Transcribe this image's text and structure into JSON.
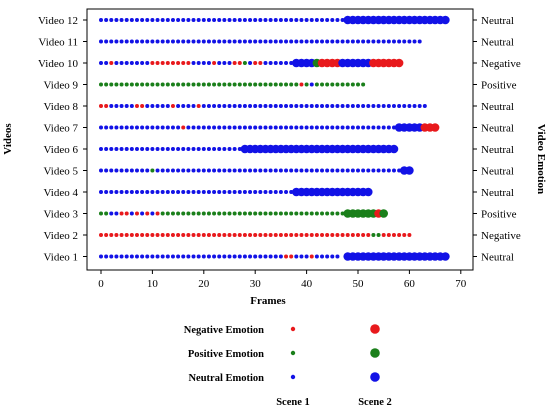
{
  "chart_data": {
    "type": "scatter",
    "xlabel": "Frames",
    "ylabel": "Videos",
    "ylabel_right": "Video Emotion",
    "xlim": [
      -3,
      70
    ],
    "xticks": [
      0,
      10,
      20,
      30,
      40,
      50,
      60,
      70
    ],
    "videos": [
      {
        "name": "Video 1",
        "emotion": "Neutral",
        "scene1": {
          "frames": [
            0,
            46
          ],
          "neutral": [
            [
              0,
              35
            ],
            [
              38,
              40
            ],
            [
              42,
              46
            ]
          ],
          "negative": [
            [
              36,
              37
            ],
            [
              41,
              41
            ]
          ],
          "positive": []
        },
        "scene2": {
          "frames": [
            48,
            67
          ],
          "neutral": [
            [
              48,
              67
            ]
          ],
          "negative": [],
          "positive": []
        }
      },
      {
        "name": "Video 2",
        "emotion": "Negative",
        "scene1": {
          "frames": [
            0,
            60
          ],
          "neutral": [],
          "negative": [
            [
              0,
              52
            ],
            [
              55,
              60
            ]
          ],
          "positive": [
            [
              53,
              54
            ]
          ]
        },
        "scene2": null
      },
      {
        "name": "Video 3",
        "emotion": "Positive",
        "scene1": {
          "frames": [
            0,
            47
          ],
          "neutral": [
            [
              2,
              3
            ],
            [
              6,
              6
            ],
            [
              8,
              8
            ],
            [
              10,
              10
            ]
          ],
          "negative": [
            [
              4,
              5
            ],
            [
              7,
              7
            ],
            [
              9,
              9
            ],
            [
              11,
              11
            ]
          ],
          "positive": [
            [
              0,
              1
            ],
            [
              12,
              47
            ]
          ]
        },
        "scene2": {
          "frames": [
            48,
            55
          ],
          "neutral": [],
          "negative": [
            [
              54,
              54
            ]
          ],
          "positive": [
            [
              48,
              53
            ],
            [
              55,
              55
            ]
          ]
        }
      },
      {
        "name": "Video 4",
        "emotion": "Neutral",
        "scene1": {
          "frames": [
            0,
            37
          ],
          "neutral": [
            [
              0,
              37
            ]
          ],
          "negative": [],
          "positive": []
        },
        "scene2": {
          "frames": [
            38,
            52
          ],
          "neutral": [
            [
              38,
              52
            ]
          ],
          "negative": [],
          "positive": []
        }
      },
      {
        "name": "Video 5",
        "emotion": "Neutral",
        "scene1": {
          "frames": [
            0,
            58
          ],
          "neutral": [
            [
              0,
              58
            ]
          ],
          "negative": [],
          "positive": [
            [
              10,
              10
            ]
          ]
        },
        "scene2": {
          "frames": [
            59,
            60
          ],
          "neutral": [
            [
              59,
              60
            ]
          ],
          "negative": [],
          "positive": []
        }
      },
      {
        "name": "Video 6",
        "emotion": "Neutral",
        "scene1": {
          "frames": [
            0,
            27
          ],
          "neutral": [
            [
              0,
              27
            ]
          ],
          "negative": [],
          "positive": []
        },
        "scene2": {
          "frames": [
            28,
            57
          ],
          "neutral": [
            [
              28,
              57
            ]
          ],
          "negative": [],
          "positive": []
        }
      },
      {
        "name": "Video 7",
        "emotion": "Neutral",
        "scene1": {
          "frames": [
            0,
            57
          ],
          "neutral": [
            [
              0,
              15
            ],
            [
              17,
              57
            ]
          ],
          "negative": [
            [
              16,
              16
            ]
          ],
          "positive": []
        },
        "scene2": {
          "frames": [
            58,
            65
          ],
          "neutral": [
            [
              58,
              62
            ]
          ],
          "negative": [
            [
              63,
              65
            ]
          ],
          "positive": []
        }
      },
      {
        "name": "Video 8",
        "emotion": "Neutral",
        "scene1": {
          "frames": [
            0,
            63
          ],
          "neutral": [
            [
              2,
              6
            ],
            [
              9,
              13
            ],
            [
              15,
              18
            ],
            [
              20,
              63
            ]
          ],
          "negative": [
            [
              0,
              1
            ],
            [
              7,
              8
            ],
            [
              14,
              14
            ],
            [
              19,
              19
            ]
          ],
          "positive": []
        },
        "scene2": null
      },
      {
        "name": "Video 9",
        "emotion": "Positive",
        "scene1": {
          "frames": [
            0,
            51
          ],
          "neutral": [
            [
              41,
              41
            ]
          ],
          "negative": [
            [
              39,
              39
            ]
          ],
          "positive": [
            [
              0,
              38
            ],
            [
              40,
              40
            ],
            [
              42,
              51
            ]
          ]
        },
        "scene2": null
      },
      {
        "name": "Video 10",
        "emotion": "Negative",
        "scene1": {
          "frames": [
            0,
            37
          ],
          "neutral": [
            [
              0,
              1
            ],
            [
              3,
              9
            ],
            [
              18,
              21
            ],
            [
              23,
              25
            ],
            [
              28,
              29
            ],
            [
              32,
              37
            ]
          ],
          "negative": [
            [
              2,
              2
            ],
            [
              10,
              17
            ],
            [
              22,
              22
            ],
            [
              26,
              27
            ],
            [
              30,
              31
            ]
          ],
          "positive": [
            [
              28,
              28
            ]
          ]
        },
        "scene2": {
          "frames": [
            38,
            58
          ],
          "neutral": [
            [
              38,
              41
            ],
            [
              47,
              52
            ]
          ],
          "negative": [
            [
              43,
              46
            ],
            [
              53,
              58
            ]
          ],
          "positive": [
            [
              42,
              42
            ]
          ]
        }
      },
      {
        "name": "Video 11",
        "emotion": "Neutral",
        "scene1": {
          "frames": [
            0,
            62
          ],
          "neutral": [
            [
              0,
              62
            ]
          ],
          "negative": [],
          "positive": []
        },
        "scene2": null
      },
      {
        "name": "Video 12",
        "emotion": "Neutral",
        "scene1": {
          "frames": [
            0,
            47
          ],
          "neutral": [
            [
              0,
              47
            ]
          ],
          "negative": [],
          "positive": []
        },
        "scene2": {
          "frames": [
            48,
            67
          ],
          "neutral": [
            [
              48,
              67
            ]
          ],
          "negative": [],
          "positive": []
        }
      }
    ],
    "legend": {
      "rows": [
        {
          "label": "Negative Emotion",
          "color": "#e8191c",
          "key": "negative"
        },
        {
          "label": "Positive Emotion",
          "color": "#1a7f1a",
          "key": "positive"
        },
        {
          "label": "Neutral Emotion",
          "color": "#1212e6",
          "key": "neutral"
        }
      ],
      "columns": [
        "Scene 1",
        "Scene 2"
      ]
    },
    "colors": {
      "negative": "#e8191c",
      "positive": "#1a7f1a",
      "neutral": "#1212e6"
    }
  }
}
